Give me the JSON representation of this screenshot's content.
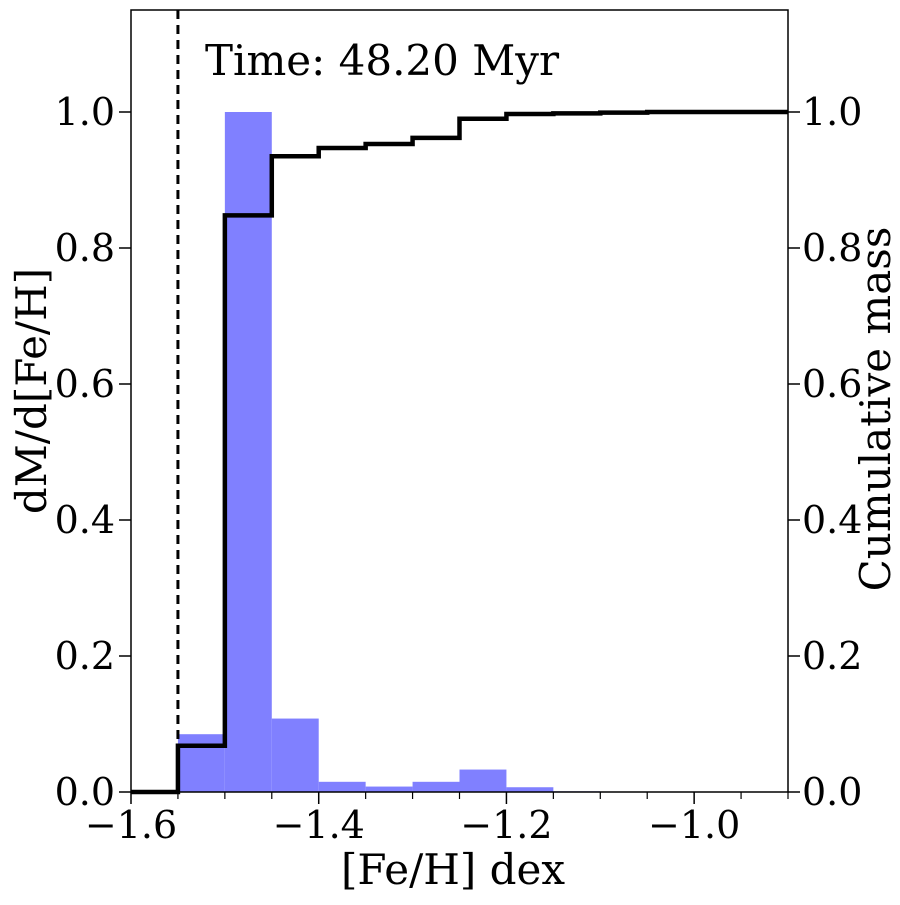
{
  "chart_data": {
    "type": "bar",
    "annotation": "Time: 48.20 Myr",
    "xlabel": "[Fe/H] dex",
    "ylabel_left": "dM/d[Fe/H]",
    "ylabel_right": "Cumulative mass",
    "xlim": [
      -1.6,
      -0.9
    ],
    "ylim_left": [
      0.0,
      1.15
    ],
    "ylim_right": [
      0.0,
      1.15
    ],
    "x_tick_labels": [
      "−1.6",
      "−1.4",
      "−1.2",
      "−1.0"
    ],
    "x_tick_values": [
      -1.6,
      -1.4,
      -1.2,
      -1.0
    ],
    "y_tick_labels": [
      "0.0",
      "0.2",
      "0.4",
      "0.6",
      "0.8",
      "1.0"
    ],
    "y_tick_values": [
      0.0,
      0.2,
      0.4,
      0.6,
      0.8,
      1.0
    ],
    "bin_edges": [
      -1.55,
      -1.5,
      -1.45,
      -1.4,
      -1.35,
      -1.3,
      -1.25,
      -1.2,
      -1.15,
      -1.1,
      -1.05,
      -1.0,
      -0.95,
      -0.9
    ],
    "histogram_values": [
      0.085,
      1.0,
      0.108,
      0.015,
      0.008,
      0.015,
      0.033,
      0.007,
      0.001,
      0.0,
      0.0,
      0.0,
      0.0
    ],
    "cumulative_values": [
      0.068,
      0.848,
      0.935,
      0.947,
      0.953,
      0.962,
      0.99,
      0.997,
      0.998,
      0.999,
      1.0,
      1.0,
      1.0
    ],
    "vline_x": -1.55,
    "colors": {
      "histogram": "#8080ff",
      "cumulative": "#000000",
      "vline": "#000000"
    },
    "series": [
      {
        "name": "dM/d[Fe/H]"
      },
      {
        "name": "Cumulative mass"
      }
    ]
  }
}
